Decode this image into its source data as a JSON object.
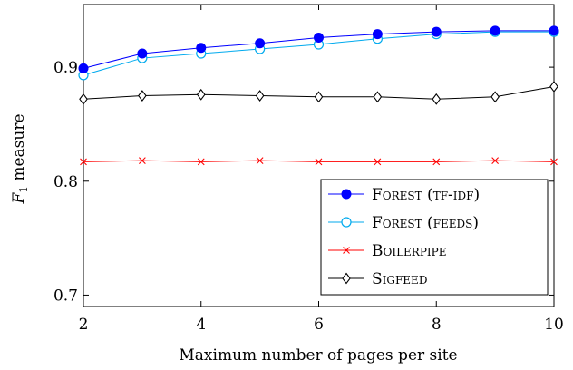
{
  "chart_data": {
    "type": "line",
    "xlabel": "Maximum number of pages per site",
    "ylabel_main": "F",
    "ylabel_sub": "1",
    "ylabel_rest": " measure",
    "xlim": [
      2,
      10
    ],
    "ylim": [
      0.69,
      0.955
    ],
    "x_ticks": [
      2,
      4,
      6,
      8,
      10
    ],
    "y_ticks": [
      0.7,
      0.8,
      0.9
    ],
    "y_tick_labels": [
      "0.7",
      "0.8",
      "0.9"
    ],
    "legend_position": "bottom-right",
    "x": [
      2,
      3,
      4,
      5,
      6,
      7,
      8,
      9,
      10
    ],
    "series": [
      {
        "name": "Forest (tf-idf)",
        "color": "#0000ff",
        "marker": "filled-circle",
        "values": [
          0.899,
          0.912,
          0.917,
          0.921,
          0.926,
          0.929,
          0.931,
          0.932,
          0.932
        ]
      },
      {
        "name": "Forest (feeds)",
        "color": "#00aaee",
        "marker": "open-circle",
        "values": [
          0.893,
          0.908,
          0.912,
          0.916,
          0.92,
          0.925,
          0.929,
          0.931,
          0.931
        ]
      },
      {
        "name": "Boilerpipe",
        "color": "#ff0000",
        "marker": "cross",
        "values": [
          0.817,
          0.818,
          0.817,
          0.818,
          0.817,
          0.817,
          0.817,
          0.818,
          0.817
        ]
      },
      {
        "name": "Sigfeed",
        "color": "#000000",
        "marker": "diamond",
        "values": [
          0.872,
          0.875,
          0.876,
          0.875,
          0.874,
          0.874,
          0.872,
          0.874,
          0.883
        ]
      }
    ]
  }
}
